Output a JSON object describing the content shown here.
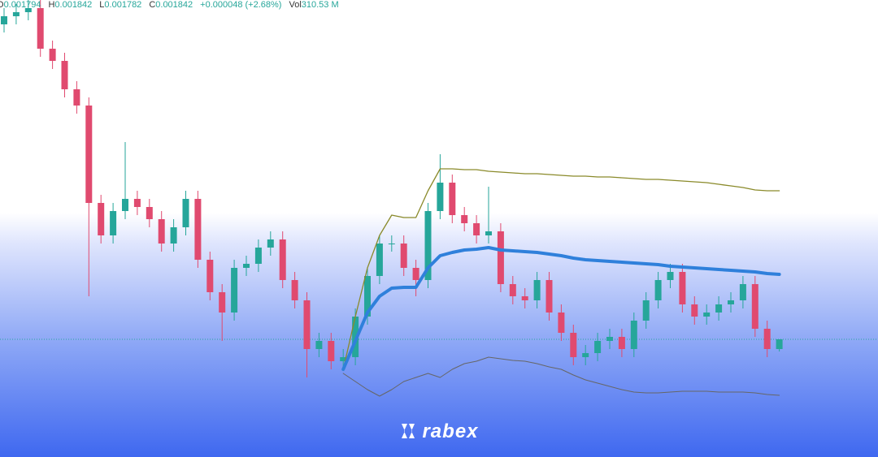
{
  "chart_data": {
    "type": "candlestick",
    "header": [
      {
        "label": "O",
        "value": "0.001794"
      },
      {
        "label": "H",
        "value": "0.001842"
      },
      {
        "label": "L",
        "value": "0.001782"
      },
      {
        "label": "C",
        "value": "0.001842"
      },
      {
        "label": "",
        "value": "+0.000048 (+2.68%)"
      },
      {
        "label": "Vol",
        "value": "310.53 M"
      }
    ],
    "watermark": "rabex",
    "up_color": "#26a69a",
    "down_color": "#e04a6f",
    "ylim": [
      0.001262,
      0.003514
    ],
    "open": [
      0.003394,
      0.003434,
      0.003454,
      0.003474,
      0.003274,
      0.003214,
      0.003074,
      0.002994,
      0.002514,
      0.002354,
      0.002474,
      0.002534,
      0.002494,
      0.002434,
      0.002314,
      0.002394,
      0.002534,
      0.002234,
      0.002074,
      0.001974,
      0.002194,
      0.002214,
      0.002294,
      0.002334,
      0.002134,
      0.002034,
      0.001794,
      0.001834,
      0.001734,
      0.001754,
      0.001954,
      0.002154,
      0.002314,
      0.002314,
      0.002194,
      0.002134,
      0.002474,
      0.002614,
      0.002454,
      0.002414,
      0.002354,
      0.002374,
      0.002114,
      0.002054,
      0.002034,
      0.002134,
      0.001974,
      0.001874,
      0.001754,
      0.001774,
      0.001834,
      0.001854,
      0.001794,
      0.001934,
      0.002034,
      0.002134,
      0.002174,
      0.002014,
      0.001954,
      0.001974,
      0.002014,
      0.002034,
      0.002114,
      0.001894,
      0.001794
    ],
    "high": [
      0.003474,
      0.003494,
      0.003514,
      0.003514,
      0.003314,
      0.003254,
      0.003114,
      0.003034,
      0.002554,
      0.002514,
      0.002814,
      0.002574,
      0.002534,
      0.002474,
      0.002434,
      0.002574,
      0.002574,
      0.002274,
      0.002114,
      0.002234,
      0.002254,
      0.002334,
      0.002374,
      0.002374,
      0.002174,
      0.002074,
      0.001874,
      0.001874,
      0.001794,
      0.001994,
      0.002194,
      0.002354,
      0.002354,
      0.002354,
      0.002234,
      0.002514,
      0.002754,
      0.002654,
      0.002494,
      0.002454,
      0.002594,
      0.002414,
      0.002154,
      0.002094,
      0.002174,
      0.002174,
      0.002014,
      0.001914,
      0.001814,
      0.001874,
      0.001894,
      0.001894,
      0.001974,
      0.002074,
      0.002174,
      0.002214,
      0.002214,
      0.002054,
      0.002014,
      0.002054,
      0.002074,
      0.002154,
      0.002154,
      0.001934,
      0.001842
    ],
    "low": [
      0.003354,
      0.003394,
      0.003414,
      0.003234,
      0.003174,
      0.003034,
      0.002954,
      0.002054,
      0.002314,
      0.002314,
      0.002434,
      0.002454,
      0.002394,
      0.002274,
      0.002274,
      0.002354,
      0.002194,
      0.002034,
      0.001834,
      0.001934,
      0.002154,
      0.002174,
      0.002254,
      0.002094,
      0.001994,
      0.001654,
      0.001754,
      0.001694,
      0.001694,
      0.001714,
      0.001914,
      0.002114,
      0.002274,
      0.002154,
      0.002054,
      0.002094,
      0.002434,
      0.002414,
      0.002374,
      0.002314,
      0.002314,
      0.002074,
      0.002014,
      0.001994,
      0.001994,
      0.001934,
      0.001834,
      0.001714,
      0.001714,
      0.001734,
      0.001794,
      0.001754,
      0.001754,
      0.001894,
      0.001994,
      0.002094,
      0.001974,
      0.001914,
      0.001914,
      0.001934,
      0.001974,
      0.001994,
      0.001854,
      0.001754,
      0.001782
    ],
    "close": [
      0.003434,
      0.003454,
      0.003474,
      0.003274,
      0.003214,
      0.003074,
      0.002994,
      0.002514,
      0.002354,
      0.002474,
      0.002534,
      0.002494,
      0.002434,
      0.002314,
      0.002394,
      0.002534,
      0.002234,
      0.002074,
      0.001974,
      0.002194,
      0.002214,
      0.002294,
      0.002334,
      0.002134,
      0.002034,
      0.001794,
      0.001834,
      0.001734,
      0.001754,
      0.001954,
      0.002154,
      0.002314,
      0.002314,
      0.002194,
      0.002134,
      0.002474,
      0.002614,
      0.002454,
      0.002414,
      0.002354,
      0.002374,
      0.002114,
      0.002054,
      0.002034,
      0.002134,
      0.001974,
      0.001874,
      0.001754,
      0.001774,
      0.001834,
      0.001854,
      0.001794,
      0.001934,
      0.002034,
      0.002134,
      0.002174,
      0.002014,
      0.001954,
      0.001974,
      0.002014,
      0.002034,
      0.002114,
      0.001894,
      0.001794,
      0.001842
    ],
    "lines": [
      {
        "color": "#8a8a2a",
        "width": 1.3,
        "values": [
          null,
          null,
          null,
          null,
          null,
          null,
          null,
          null,
          null,
          null,
          null,
          null,
          null,
          null,
          null,
          null,
          null,
          null,
          null,
          null,
          null,
          null,
          null,
          null,
          null,
          null,
          null,
          null,
          0.001694,
          0.001954,
          0.002194,
          0.002354,
          0.002454,
          0.002442,
          0.002442,
          0.002574,
          0.002682,
          0.002682,
          0.002678,
          0.002678,
          0.00267,
          0.002666,
          0.002662,
          0.002658,
          0.002658,
          0.002654,
          0.00265,
          0.002646,
          0.002646,
          0.002642,
          0.002642,
          0.002638,
          0.002634,
          0.00263,
          0.00263,
          0.002626,
          0.002622,
          0.002618,
          0.002614,
          0.002606,
          0.002598,
          0.00259,
          0.002578,
          0.002574,
          0.002574
        ]
      },
      {
        "color": "#2f80db",
        "width": 4,
        "values": [
          null,
          null,
          null,
          null,
          null,
          null,
          null,
          null,
          null,
          null,
          null,
          null,
          null,
          null,
          null,
          null,
          null,
          null,
          null,
          null,
          null,
          null,
          null,
          null,
          null,
          null,
          null,
          null,
          0.001694,
          0.001834,
          0.001974,
          0.002054,
          0.002094,
          0.002098,
          0.002098,
          0.002194,
          0.002254,
          0.00227,
          0.002282,
          0.002286,
          0.002294,
          0.002282,
          0.002278,
          0.002274,
          0.00227,
          0.002262,
          0.002254,
          0.002242,
          0.002234,
          0.00223,
          0.002226,
          0.002222,
          0.002218,
          0.002214,
          0.00221,
          0.002202,
          0.002198,
          0.002194,
          0.00219,
          0.002186,
          0.002182,
          0.002178,
          0.002174,
          0.002166,
          0.002162
        ]
      },
      {
        "color": "#666666",
        "width": 1,
        "values": [
          null,
          null,
          null,
          null,
          null,
          null,
          null,
          null,
          null,
          null,
          null,
          null,
          null,
          null,
          null,
          null,
          null,
          null,
          null,
          null,
          null,
          null,
          null,
          null,
          null,
          null,
          null,
          null,
          0.001674,
          0.001634,
          0.001594,
          0.001562,
          0.001594,
          0.001634,
          0.001654,
          0.001674,
          0.001654,
          0.001694,
          0.001722,
          0.001734,
          0.001754,
          0.001746,
          0.001738,
          0.001734,
          0.001722,
          0.001706,
          0.001694,
          0.001666,
          0.001642,
          0.001626,
          0.00161,
          0.001594,
          0.001582,
          0.001578,
          0.001578,
          0.001582,
          0.001586,
          0.001586,
          0.001586,
          0.001582,
          0.001582,
          0.001582,
          0.001578,
          0.00157,
          0.001566
        ]
      }
    ]
  }
}
